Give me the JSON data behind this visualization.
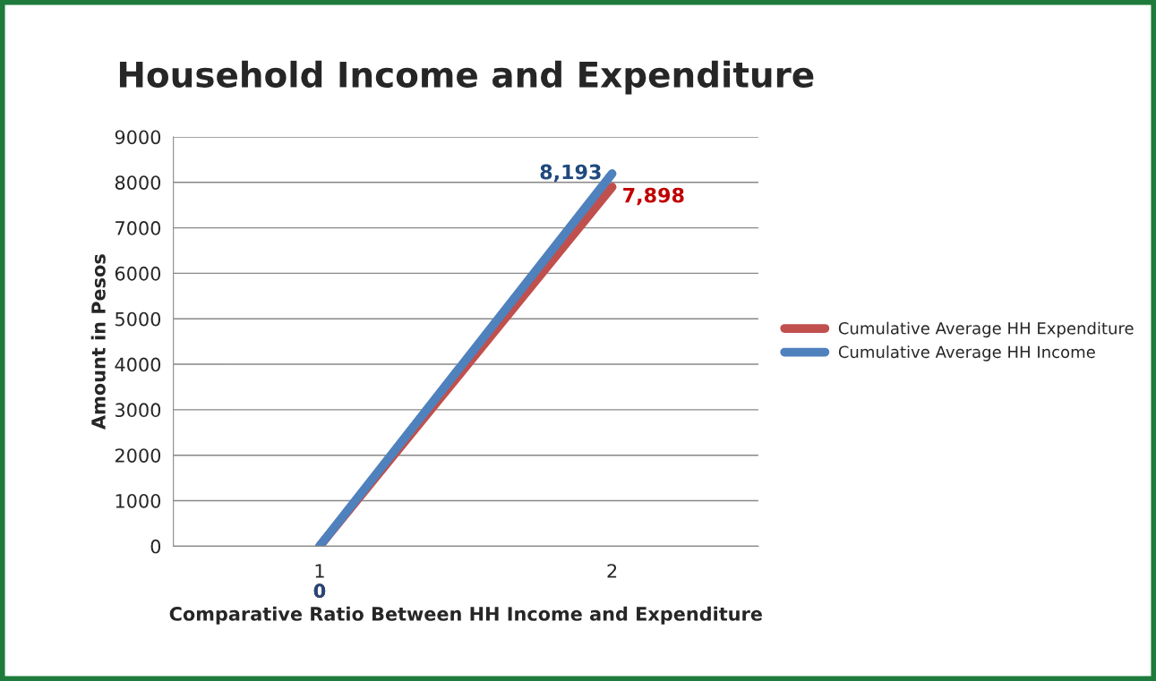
{
  "chart_data": {
    "type": "line",
    "title": "Household Income and Expenditure",
    "xlabel": "Comparative Ratio Between HH Income and Expenditure",
    "ylabel": "Amount in Pesos",
    "categories": [
      "1",
      "2"
    ],
    "series": [
      {
        "name": "Cumulative Average HH Expenditure",
        "color": "#c0504d",
        "values": [
          0,
          7898
        ],
        "value_labels": [
          "0",
          "7,898"
        ]
      },
      {
        "name": "Cumulative Average HH Income",
        "color": "#4f81bd",
        "values": [
          0,
          8193
        ],
        "value_labels": [
          "0",
          "8,193"
        ]
      }
    ],
    "ylim": [
      0,
      9000
    ],
    "yticks": [
      0,
      1000,
      2000,
      3000,
      4000,
      5000,
      6000,
      7000,
      8000,
      9000
    ],
    "grid": "y",
    "legend": "right",
    "marker": "none",
    "line_style": "solid"
  }
}
